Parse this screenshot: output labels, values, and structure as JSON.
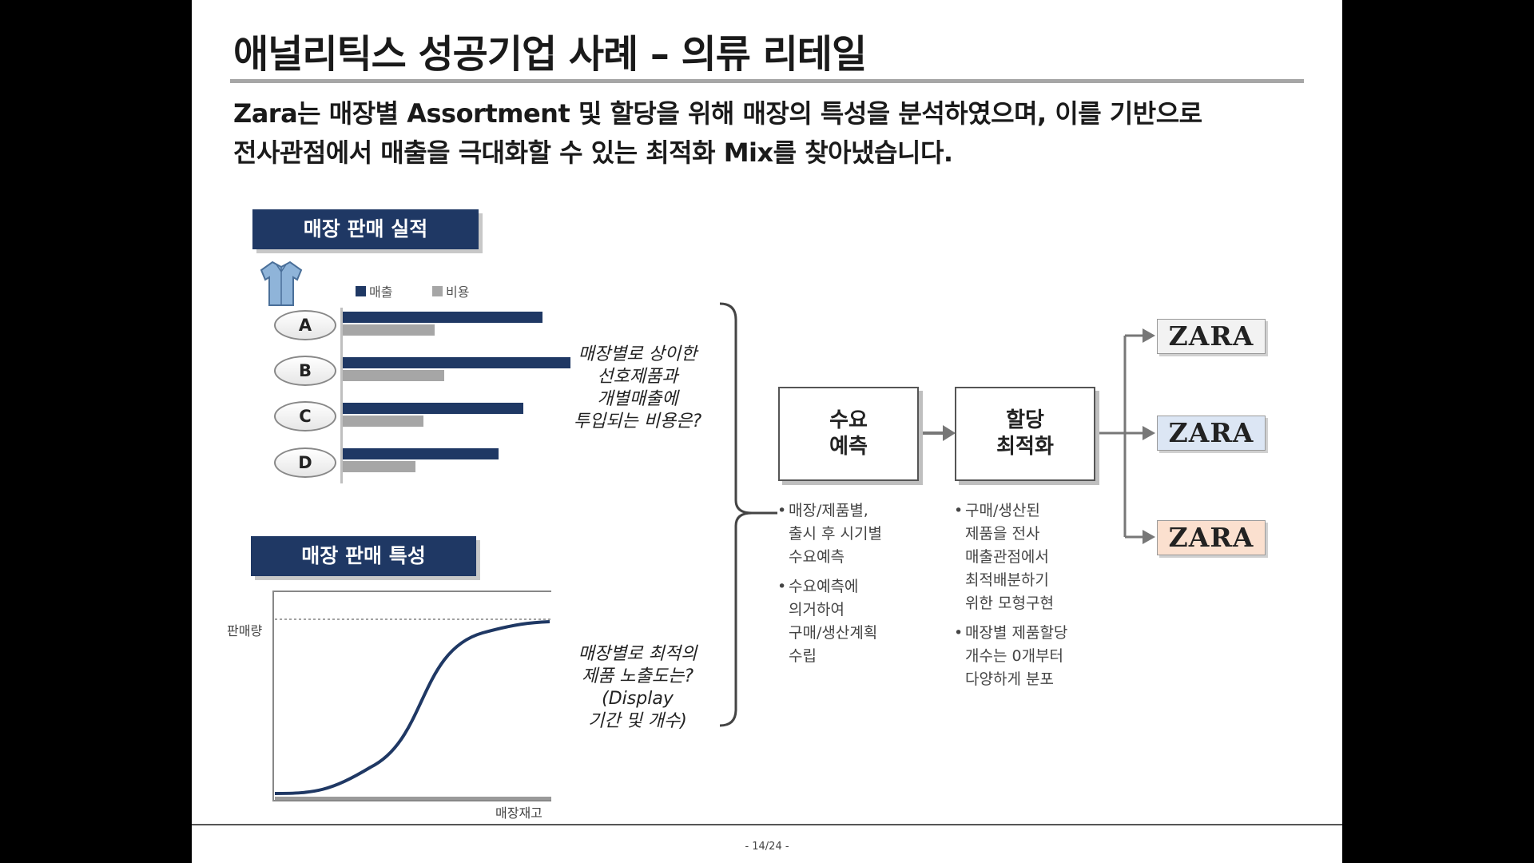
{
  "title": "애널리틱스 성공기업 사례 – 의류 리테일",
  "subtitle": {
    "line1": "Zara는 매장별 Assortment 및 할당을 위해 매장의 특성을 분석하였으며, 이를 기반으로",
    "line2": "전사관점에서 매출을 극대화할 수 있는 최적화 Mix를 찾아냈습니다."
  },
  "sales_performance": {
    "label": "매장 판매 실적",
    "icon": "shirt-icon",
    "legend": [
      "매출",
      "비용"
    ],
    "colors": {
      "sales": "#1f3864",
      "cost": "#a6a6a6"
    },
    "stores": [
      {
        "name": "A",
        "sales": 250,
        "cost": 115
      },
      {
        "name": "B",
        "sales": 285,
        "cost": 127
      },
      {
        "name": "C",
        "sales": 226,
        "cost": 101
      },
      {
        "name": "D",
        "sales": 195,
        "cost": 91
      }
    ],
    "question": [
      "매장별로 상이한",
      "선호제품과",
      "개별매출에",
      "투입되는 비용은?"
    ]
  },
  "sales_characteristics": {
    "label": "매장 판매 특성",
    "y_axis_label": "판매량",
    "x_axis_label": "매장재고",
    "question": [
      "매장별로 최적의",
      "제품 노출도는?",
      "(Display",
      "기간 및 개수)"
    ]
  },
  "process": {
    "demand": {
      "line1": "수요",
      "line2": "예측"
    },
    "allocation": {
      "line1": "할당",
      "line2": "최적화"
    }
  },
  "demand_bullets": [
    [
      "매장/제품별,",
      "출시 후 시기별",
      "수요예측"
    ],
    [
      "수요예측에",
      "의거하여",
      "구매/생산계획",
      "수립"
    ]
  ],
  "allocation_bullets": [
    [
      "구매/생산된",
      "제품을 전사",
      "매출관점에서",
      "최적배분하기",
      "위한 모형구현"
    ],
    [
      "매장별 제품할당",
      "개수는 0개부터",
      "다양하게 분포"
    ]
  ],
  "zara": {
    "label": "ZARA",
    "colors": [
      "#f2f2f2",
      "#dce6f4",
      "#fbe0cf"
    ]
  },
  "page": "- 14/24 -"
}
